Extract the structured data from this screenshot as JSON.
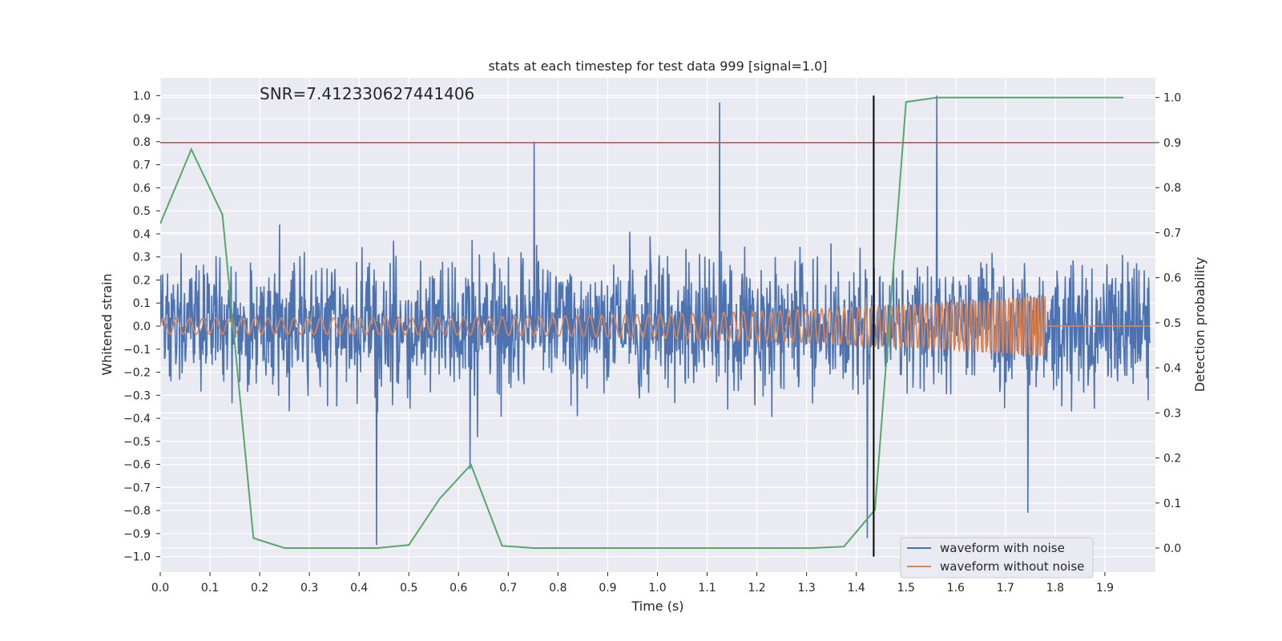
{
  "chart_data": {
    "type": "line",
    "title": "stats at each timestep for test data 999 [signal=1.0]",
    "annotation": "SNR=7.412330627441406",
    "xlabel": "Time (s)",
    "ylabel_left": "Whitened strain",
    "ylabel_right": "Detection probability",
    "xlim": [
      0.0,
      1.99
    ],
    "ylim_left": [
      -1.05,
      1.1
    ],
    "ylim_right": [
      -0.05,
      1.04
    ],
    "x_ticks": [
      "0.0",
      "0.1",
      "0.2",
      "0.3",
      "0.4",
      "0.5",
      "0.6",
      "0.7",
      "0.8",
      "0.9",
      "1.0",
      "1.1",
      "1.2",
      "1.3",
      "1.4",
      "1.5",
      "1.6",
      "1.7",
      "1.8",
      "1.9"
    ],
    "y_left_ticks": [
      "1.0",
      "0.9",
      "0.8",
      "0.7",
      "0.6",
      "0.5",
      "0.4",
      "0.3",
      "0.2",
      "0.1",
      "0.0",
      "−0.1",
      "−0.2",
      "−0.3",
      "−0.4",
      "−0.5",
      "−0.6",
      "−0.7",
      "−0.8",
      "−0.9",
      "−1.0"
    ],
    "y_right_ticks": [
      "1.0",
      "0.9",
      "0.8",
      "0.7",
      "0.6",
      "0.5",
      "0.4",
      "0.3",
      "0.2",
      "0.1",
      "0.0"
    ],
    "grid": true,
    "legend_position": "bottom-right",
    "threshold_line": {
      "axis": "right",
      "y": 0.9,
      "color": "#c44e52"
    },
    "vertical_marker": {
      "x": 1.435,
      "y_range": [
        -1.0,
        1.0
      ],
      "color": "#000000"
    },
    "series": [
      {
        "name": "waveform with noise",
        "axis": "left",
        "color": "#4c72b0",
        "kind": "noisy strain, dense samples",
        "amplitude_range": [
          -0.95,
          0.97
        ]
      },
      {
        "name": "waveform without noise",
        "axis": "left",
        "color": "#dd8452",
        "kind": "chirp",
        "x_end": 1.78,
        "amplitude_start": 0.035,
        "amplitude_end": 0.13
      },
      {
        "name": "",
        "axis": "right",
        "color": "#55a868",
        "kind": "detection probability",
        "x": [
          0.0,
          0.0625,
          0.125,
          0.1875,
          0.25,
          0.3125,
          0.375,
          0.4375,
          0.5,
          0.5625,
          0.625,
          0.6875,
          0.75,
          0.8125,
          0.875,
          0.9375,
          1.0,
          1.0625,
          1.125,
          1.1875,
          1.25,
          1.3125,
          1.375,
          1.4375,
          1.5,
          1.5625,
          1.625,
          1.6875,
          1.75,
          1.8125,
          1.875,
          1.9375
        ],
        "y": [
          0.72,
          0.885,
          0.74,
          0.022,
          0.0,
          0.0,
          0.0,
          0.0,
          0.007,
          0.11,
          0.185,
          0.005,
          0.0,
          0.0,
          0.0,
          0.0,
          0.0,
          0.0,
          0.0,
          0.0,
          0.0,
          0.0,
          0.003,
          0.085,
          0.99,
          1.0,
          1.0,
          1.0,
          1.0,
          1.0,
          1.0,
          1.0
        ]
      }
    ]
  }
}
